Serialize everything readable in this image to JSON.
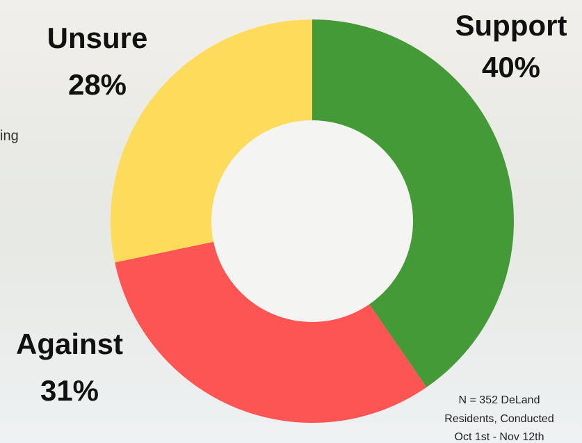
{
  "chart_data": {
    "type": "donut",
    "categories": [
      "Support",
      "Against",
      "Unsure"
    ],
    "values": [
      40,
      31,
      28
    ],
    "value_labels": [
      "40%",
      "31%",
      "28%"
    ],
    "colors": [
      "#439a37",
      "#fd5454",
      "#fedc5b"
    ],
    "note_lines": [
      "N = 352 DeLand",
      "Residents, Conducted",
      "Oct 1st - Nov 12th"
    ],
    "background_text": "ing"
  }
}
